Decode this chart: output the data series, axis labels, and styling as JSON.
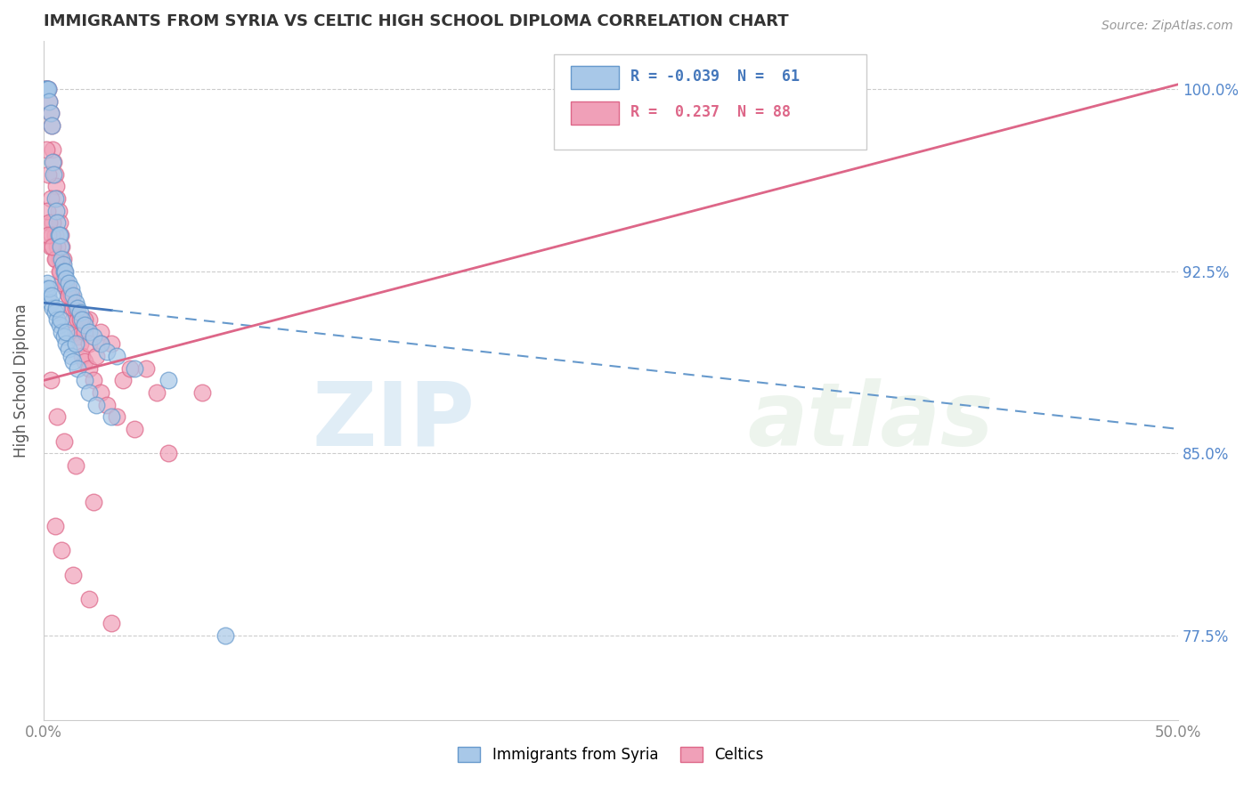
{
  "title": "IMMIGRANTS FROM SYRIA VS CELTIC HIGH SCHOOL DIPLOMA CORRELATION CHART",
  "source": "Source: ZipAtlas.com",
  "ylabel": "High School Diploma",
  "xlim": [
    0.0,
    50.0
  ],
  "ylim": [
    74.0,
    102.0
  ],
  "yticks": [
    77.5,
    85.0,
    92.5,
    100.0
  ],
  "ytick_labels": [
    "77.5%",
    "85.0%",
    "92.5%",
    "100.0%"
  ],
  "series": [
    {
      "name": "Immigrants from Syria",
      "color": "#a8c8e8",
      "edge_color": "#6699cc",
      "trend_color_solid": "#4477bb",
      "trend_color_dash": "#6699cc",
      "trend_y0": 91.2,
      "trend_y1": 86.0,
      "solid_end_x": 3.0,
      "points_x": [
        0.05,
        0.1,
        0.15,
        0.2,
        0.25,
        0.3,
        0.35,
        0.4,
        0.45,
        0.5,
        0.55,
        0.6,
        0.65,
        0.7,
        0.75,
        0.8,
        0.85,
        0.9,
        0.95,
        1.0,
        1.1,
        1.2,
        1.3,
        1.4,
        1.5,
        1.6,
        1.7,
        1.8,
        2.0,
        2.2,
        2.5,
        2.8,
        3.2,
        4.0,
        5.5,
        0.1,
        0.2,
        0.3,
        0.4,
        0.5,
        0.6,
        0.7,
        0.8,
        0.9,
        1.0,
        1.1,
        1.2,
        1.3,
        1.5,
        1.8,
        2.0,
        2.3,
        3.0,
        0.15,
        0.25,
        0.35,
        0.55,
        0.75,
        1.0,
        1.4,
        8.0
      ],
      "points_y": [
        100.0,
        100.0,
        100.0,
        100.0,
        99.5,
        99.0,
        98.5,
        97.0,
        96.5,
        95.5,
        95.0,
        94.5,
        94.0,
        94.0,
        93.5,
        93.0,
        92.8,
        92.5,
        92.5,
        92.2,
        92.0,
        91.8,
        91.5,
        91.2,
        91.0,
        90.8,
        90.5,
        90.3,
        90.0,
        89.8,
        89.5,
        89.2,
        89.0,
        88.5,
        88.0,
        91.8,
        91.5,
        91.2,
        91.0,
        90.8,
        90.5,
        90.3,
        90.0,
        89.8,
        89.5,
        89.3,
        89.0,
        88.8,
        88.5,
        88.0,
        87.5,
        87.0,
        86.5,
        92.0,
        91.8,
        91.5,
        91.0,
        90.5,
        90.0,
        89.5,
        77.5
      ]
    },
    {
      "name": "Celtics",
      "color": "#f0a0b8",
      "edge_color": "#dd6688",
      "trend_color": "#dd6688",
      "trend_y0": 88.0,
      "trend_y1": 100.2,
      "points_x": [
        0.05,
        0.1,
        0.15,
        0.2,
        0.25,
        0.3,
        0.35,
        0.4,
        0.45,
        0.5,
        0.55,
        0.6,
        0.65,
        0.7,
        0.75,
        0.8,
        0.85,
        0.9,
        0.95,
        1.0,
        1.1,
        1.2,
        1.3,
        1.4,
        1.5,
        1.6,
        1.7,
        1.8,
        2.0,
        2.2,
        2.5,
        2.8,
        3.2,
        4.0,
        5.5,
        0.1,
        0.2,
        0.3,
        0.4,
        0.5,
        0.6,
        0.7,
        0.8,
        0.9,
        1.0,
        1.1,
        1.2,
        1.3,
        1.5,
        1.8,
        2.0,
        2.3,
        3.5,
        0.15,
        0.25,
        0.35,
        0.55,
        0.75,
        1.0,
        1.4,
        2.0,
        2.5,
        3.0,
        4.5,
        7.0,
        0.3,
        0.5,
        0.8,
        1.2,
        1.8,
        2.5,
        3.8,
        5.0,
        0.2,
        0.4,
        0.7,
        1.1,
        1.6,
        0.3,
        0.6,
        0.9,
        1.4,
        2.2,
        0.5,
        0.8,
        1.3,
        2.0,
        3.0
      ],
      "points_y": [
        100.0,
        100.0,
        100.0,
        100.0,
        99.5,
        99.0,
        98.5,
        97.5,
        97.0,
        96.5,
        96.0,
        95.5,
        95.0,
        94.5,
        94.0,
        93.5,
        93.0,
        92.5,
        92.0,
        91.8,
        91.5,
        91.0,
        90.5,
        90.0,
        89.8,
        89.5,
        89.0,
        88.8,
        88.5,
        88.0,
        87.5,
        87.0,
        86.5,
        86.0,
        85.0,
        97.5,
        96.5,
        95.5,
        94.5,
        94.0,
        93.5,
        93.0,
        92.8,
        92.5,
        92.0,
        91.8,
        91.5,
        91.0,
        90.5,
        90.0,
        89.5,
        89.0,
        88.0,
        95.0,
        94.5,
        94.0,
        93.0,
        92.5,
        92.0,
        91.0,
        90.5,
        90.0,
        89.5,
        88.5,
        87.5,
        93.5,
        93.0,
        92.0,
        91.5,
        90.5,
        89.5,
        88.5,
        87.5,
        94.0,
        93.5,
        92.5,
        91.5,
        90.5,
        88.0,
        86.5,
        85.5,
        84.5,
        83.0,
        82.0,
        81.0,
        80.0,
        79.0,
        78.0
      ]
    }
  ],
  "watermark_zip": "ZIP",
  "watermark_atlas": "atlas",
  "background_color": "#ffffff",
  "grid_color": "#cccccc",
  "title_color": "#333333",
  "right_ytick_color": "#5588cc",
  "axis_label_color": "#888888",
  "legend_label_colors": [
    "#4477bb",
    "#dd6688"
  ]
}
